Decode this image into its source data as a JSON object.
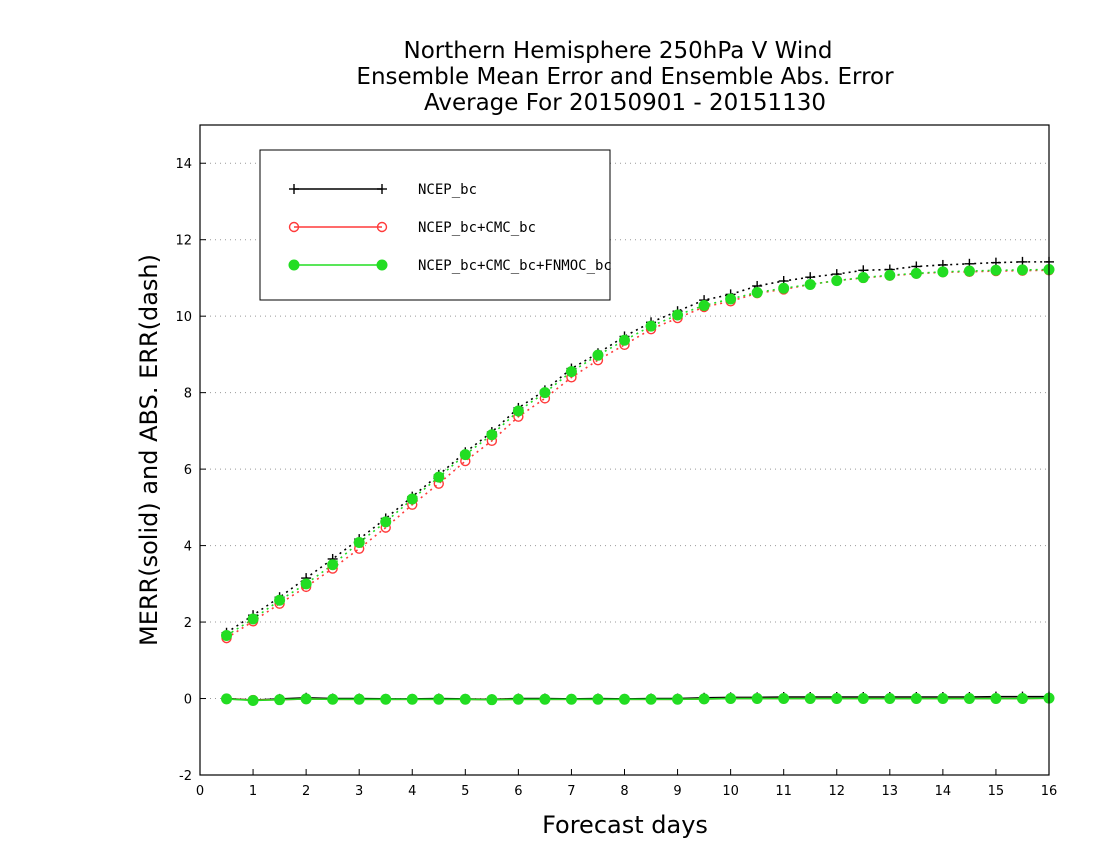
{
  "chart_data": {
    "type": "line",
    "title_lines": [
      "Northern Hemisphere 250hPa V Wind",
      "Ensemble Mean Error and Ensemble Abs. Error",
      "Average For 20150901 - 20151130"
    ],
    "xlabel": "Forecast days",
    "ylabel": "MERR(solid) and ABS. ERR(dash)",
    "xlim": [
      0,
      16
    ],
    "ylim": [
      -2,
      15
    ],
    "x_ticks": [
      "0",
      "1",
      "2",
      "3",
      "4",
      "5",
      "6",
      "7",
      "8",
      "9",
      "10",
      "11",
      "12",
      "13",
      "14",
      "15",
      "16"
    ],
    "y_ticks": [
      "-2",
      "0",
      "2",
      "4",
      "6",
      "8",
      "10",
      "12",
      "14"
    ],
    "grid": "dotted horizontal",
    "legend_position": "top-left",
    "x": [
      0.5,
      1,
      1.5,
      2,
      2.5,
      3,
      3.5,
      4,
      4.5,
      5,
      5.5,
      6,
      6.5,
      7,
      7.5,
      8,
      8.5,
      9,
      9.5,
      10,
      10.5,
      11,
      11.5,
      12,
      12.5,
      13,
      13.5,
      14,
      14.5,
      15,
      15.5,
      16
    ],
    "series": [
      {
        "name": "NCEP_bc",
        "color": "#000000",
        "marker": "plus",
        "abs_err": [
          1.72,
          2.18,
          2.65,
          3.15,
          3.65,
          4.17,
          4.71,
          5.28,
          5.85,
          6.44,
          6.97,
          7.6,
          8.06,
          8.63,
          9.03,
          9.47,
          9.84,
          10.13,
          10.42,
          10.57,
          10.79,
          10.92,
          11.02,
          11.1,
          11.2,
          11.22,
          11.3,
          11.34,
          11.37,
          11.4,
          11.42,
          11.42
        ],
        "mean_err": [
          0.0,
          -0.04,
          -0.01,
          0.02,
          0.0,
          0.0,
          -0.01,
          -0.01,
          0.0,
          -0.01,
          -0.02,
          0.0,
          0.0,
          -0.01,
          0.0,
          -0.01,
          0.0,
          0.0,
          0.02,
          0.03,
          0.03,
          0.04,
          0.04,
          0.04,
          0.04,
          0.04,
          0.04,
          0.04,
          0.04,
          0.05,
          0.05,
          0.05
        ]
      },
      {
        "name": "NCEP_bc+CMC_bc",
        "color": "#ff3a3a",
        "marker": "open-circle",
        "abs_err": [
          1.58,
          2.02,
          2.48,
          2.92,
          3.4,
          3.92,
          4.47,
          5.07,
          5.62,
          6.21,
          6.74,
          7.37,
          7.85,
          8.4,
          8.85,
          9.25,
          9.66,
          9.95,
          10.24,
          10.39,
          10.6,
          10.7,
          10.83,
          10.93,
          11.0,
          11.06,
          11.11,
          11.15,
          11.16,
          11.18,
          11.19,
          11.2
        ],
        "mean_err": [
          -0.01,
          -0.04,
          -0.03,
          -0.01,
          -0.02,
          -0.02,
          -0.02,
          -0.02,
          -0.02,
          -0.02,
          -0.03,
          -0.02,
          -0.02,
          -0.02,
          -0.02,
          -0.02,
          -0.02,
          -0.02,
          -0.01,
          0.0,
          0.0,
          0.0,
          0.0,
          0.0,
          0.0,
          0.0,
          0.0,
          0.0,
          0.0,
          0.0,
          0.0,
          0.01
        ]
      },
      {
        "name": "NCEP_bc+CMC_bc+FNMOC_bc",
        "color": "#22dd22",
        "marker": "filled-circle",
        "abs_err": [
          1.65,
          2.08,
          2.57,
          3.0,
          3.5,
          4.08,
          4.62,
          5.22,
          5.79,
          6.38,
          6.9,
          7.52,
          8.0,
          8.55,
          8.98,
          9.37,
          9.74,
          10.03,
          10.28,
          10.45,
          10.62,
          10.73,
          10.83,
          10.93,
          11.01,
          11.07,
          11.12,
          11.16,
          11.18,
          11.2,
          11.21,
          11.22
        ],
        "mean_err": [
          -0.01,
          -0.05,
          -0.03,
          -0.01,
          -0.02,
          -0.02,
          -0.02,
          -0.02,
          -0.02,
          -0.02,
          -0.03,
          -0.02,
          -0.02,
          -0.02,
          -0.02,
          -0.02,
          -0.02,
          -0.02,
          -0.01,
          0.0,
          0.0,
          0.0,
          0.0,
          0.0,
          0.0,
          0.0,
          0.0,
          0.0,
          0.0,
          0.0,
          0.0,
          0.01
        ]
      }
    ]
  }
}
